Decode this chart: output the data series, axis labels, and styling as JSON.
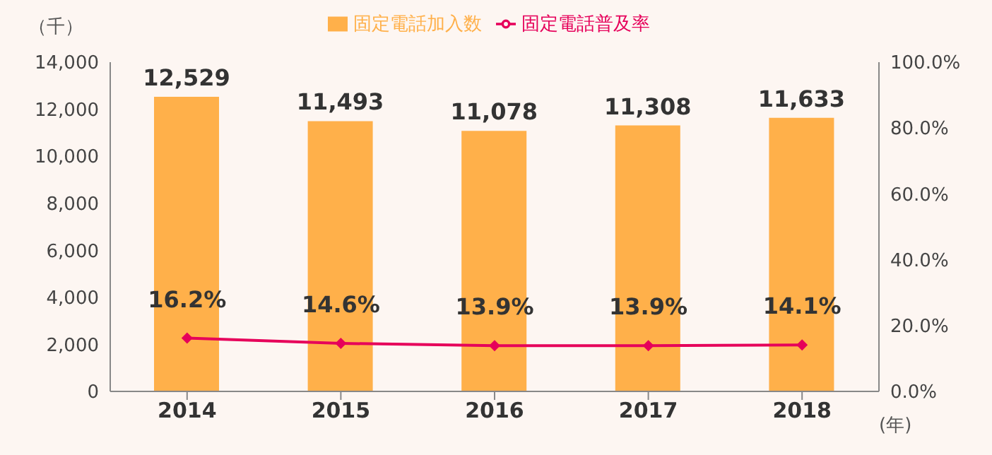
{
  "chart_data": {
    "type": "bar",
    "ylabel": "（千）",
    "xlabel": "(年)",
    "categories": [
      "2014",
      "2015",
      "2016",
      "2017",
      "2018"
    ],
    "series": [
      {
        "name": "固定電話加入数",
        "color": "#ffb04a",
        "values": [
          12529,
          11493,
          11078,
          11308,
          11633
        ],
        "value_labels": [
          "12,529",
          "11,493",
          "11,078",
          "11,308",
          "11,633"
        ]
      },
      {
        "name": "固定電話普及率",
        "type": "line",
        "axis": "y2",
        "color": "#e6005a",
        "values": [
          16.2,
          14.6,
          13.9,
          13.9,
          14.1
        ],
        "value_labels": [
          "16.2%",
          "14.6%",
          "13.9%",
          "13.9%",
          "14.1%"
        ]
      }
    ],
    "ylim": [
      0,
      14000
    ],
    "yticks": [
      {
        "value": 0,
        "label": "0"
      },
      {
        "value": 2000,
        "label": "2,000"
      },
      {
        "value": 4000,
        "label": "4,000"
      },
      {
        "value": 6000,
        "label": "6,000"
      },
      {
        "value": 8000,
        "label": "8,000"
      },
      {
        "value": 10000,
        "label": "10,000"
      },
      {
        "value": 12000,
        "label": "12,000"
      },
      {
        "value": 14000,
        "label": "14,000"
      }
    ],
    "y2lim": [
      0,
      100
    ],
    "y2ticks": [
      {
        "value": 0,
        "label": "0.0%"
      },
      {
        "value": 20,
        "label": "20.0%"
      },
      {
        "value": 40,
        "label": "40.0%"
      },
      {
        "value": 60,
        "label": "60.0%"
      },
      {
        "value": 80,
        "label": "80.0%"
      },
      {
        "value": 100,
        "label": "100.0%"
      }
    ],
    "legend": "top",
    "marker": "diamond",
    "grid": false
  }
}
